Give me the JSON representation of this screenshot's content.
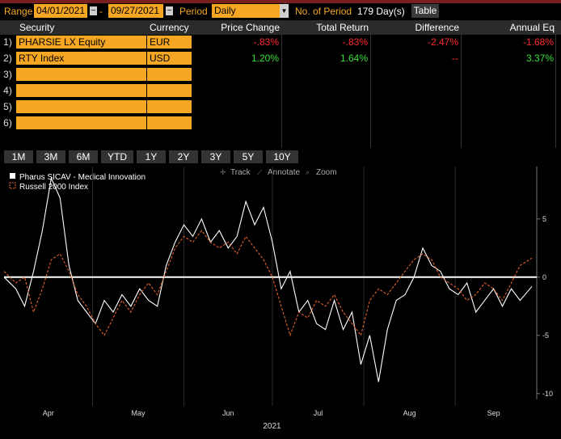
{
  "toolbar": {
    "range_label": "Range",
    "start_date": "04/01/2021",
    "end_date": "09/27/2021",
    "period_label": "Period",
    "period_value": "Daily",
    "num_period_label": "No. of Period",
    "num_period_value": "179 Day(s)",
    "table_button": "Table"
  },
  "table": {
    "headers": [
      "Security",
      "Currency",
      "Price Change",
      "Total Return",
      "Difference",
      "Annual Eq"
    ],
    "rows": [
      {
        "num": "1)",
        "security": "PHARSIE LX Equity",
        "currency": "EUR",
        "price_change": "-.83%",
        "total_return": "-.83%",
        "difference": "-2.47%",
        "annual_eq": "-1.68%"
      },
      {
        "num": "2)",
        "security": "RTY Index",
        "currency": "USD",
        "price_change": "1.20%",
        "total_return": "1.64%",
        "difference": "--",
        "annual_eq": "3.37%"
      },
      {
        "num": "3)",
        "security": "",
        "currency": ""
      },
      {
        "num": "4)",
        "security": "",
        "currency": ""
      },
      {
        "num": "5)",
        "security": "",
        "currency": ""
      },
      {
        "num": "6)",
        "security": "",
        "currency": ""
      }
    ]
  },
  "period_tabs": [
    "1M",
    "3M",
    "6M",
    "YTD",
    "1Y",
    "2Y",
    "3Y",
    "5Y",
    "10Y"
  ],
  "chart_tools": {
    "track": "Track",
    "annotate": "Annotate",
    "zoom": "Zoom"
  },
  "colors": {
    "accent": "#f5a623",
    "series1": "#ffffff",
    "series2": "#e0622a",
    "negative": "#ff2b2b",
    "positive": "#35e035"
  },
  "chart_data": {
    "type": "line",
    "legend_placement": "top-left",
    "series": [
      {
        "name": "Pharus SICAV - Medical Innovation",
        "style": "solid",
        "x": [
          "2021-04-01",
          "2021-04-05",
          "2021-04-08",
          "2021-04-11",
          "2021-04-14",
          "2021-04-17",
          "2021-04-20",
          "2021-04-23",
          "2021-04-26",
          "2021-04-29",
          "2021-05-02",
          "2021-05-05",
          "2021-05-08",
          "2021-05-11",
          "2021-05-14",
          "2021-05-17",
          "2021-05-20",
          "2021-05-23",
          "2021-05-26",
          "2021-05-29",
          "2021-06-01",
          "2021-06-04",
          "2021-06-07",
          "2021-06-10",
          "2021-06-13",
          "2021-06-16",
          "2021-06-19",
          "2021-06-22",
          "2021-06-25",
          "2021-06-28",
          "2021-07-01",
          "2021-07-04",
          "2021-07-07",
          "2021-07-10",
          "2021-07-13",
          "2021-07-16",
          "2021-07-19",
          "2021-07-22",
          "2021-07-25",
          "2021-07-28",
          "2021-07-31",
          "2021-08-03",
          "2021-08-06",
          "2021-08-09",
          "2021-08-12",
          "2021-08-15",
          "2021-08-18",
          "2021-08-21",
          "2021-08-24",
          "2021-08-27",
          "2021-08-30",
          "2021-09-02",
          "2021-09-05",
          "2021-09-08",
          "2021-09-11",
          "2021-09-14",
          "2021-09-17",
          "2021-09-20",
          "2021-09-23",
          "2021-09-27"
        ],
        "y": [
          0.0,
          -1.0,
          -2.5,
          0.5,
          4.0,
          8.5,
          6.8,
          1.0,
          -2.0,
          -3.0,
          -4.0,
          -2.0,
          -3.0,
          -1.5,
          -2.5,
          -1.0,
          -2.0,
          -2.5,
          1.0,
          3.0,
          4.5,
          3.5,
          5.0,
          3.0,
          4.0,
          2.5,
          3.5,
          6.5,
          4.5,
          6.0,
          3.0,
          -1.0,
          0.5,
          -3.0,
          -2.0,
          -4.0,
          -4.5,
          -2.0,
          -4.5,
          -3.0,
          -7.5,
          -5.0,
          -9.0,
          -4.5,
          -2.0,
          -1.5,
          0.0,
          2.5,
          1.0,
          0.5,
          -1.0,
          -1.5,
          -0.5,
          -3.0,
          -2.0,
          -1.0,
          -2.5,
          -1.0,
          -2.0,
          -0.8
        ]
      },
      {
        "name": "Russell 2000 Index",
        "style": "dashed",
        "x": [
          "2021-04-01",
          "2021-04-05",
          "2021-04-08",
          "2021-04-11",
          "2021-04-14",
          "2021-04-17",
          "2021-04-20",
          "2021-04-23",
          "2021-04-26",
          "2021-04-29",
          "2021-05-02",
          "2021-05-05",
          "2021-05-08",
          "2021-05-11",
          "2021-05-14",
          "2021-05-17",
          "2021-05-20",
          "2021-05-23",
          "2021-05-26",
          "2021-05-29",
          "2021-06-01",
          "2021-06-04",
          "2021-06-07",
          "2021-06-10",
          "2021-06-13",
          "2021-06-16",
          "2021-06-19",
          "2021-06-22",
          "2021-06-25",
          "2021-06-28",
          "2021-07-01",
          "2021-07-04",
          "2021-07-07",
          "2021-07-10",
          "2021-07-13",
          "2021-07-16",
          "2021-07-19",
          "2021-07-22",
          "2021-07-25",
          "2021-07-28",
          "2021-07-31",
          "2021-08-03",
          "2021-08-06",
          "2021-08-09",
          "2021-08-12",
          "2021-08-15",
          "2021-08-18",
          "2021-08-21",
          "2021-08-24",
          "2021-08-27",
          "2021-08-30",
          "2021-09-02",
          "2021-09-05",
          "2021-09-08",
          "2021-09-11",
          "2021-09-14",
          "2021-09-17",
          "2021-09-20",
          "2021-09-23",
          "2021-09-27"
        ],
        "y": [
          0.5,
          -0.5,
          0.0,
          -3.0,
          -1.0,
          1.5,
          2.0,
          0.5,
          -1.5,
          -2.5,
          -4.0,
          -5.0,
          -3.5,
          -2.0,
          -3.0,
          -1.5,
          -0.5,
          -1.5,
          0.5,
          2.5,
          3.5,
          3.0,
          4.0,
          3.0,
          2.5,
          3.0,
          2.0,
          3.5,
          2.5,
          1.5,
          0.0,
          -2.5,
          -5.0,
          -3.0,
          -3.5,
          -2.0,
          -2.5,
          -1.5,
          -3.0,
          -4.0,
          -5.0,
          -2.0,
          -1.0,
          -1.5,
          -0.5,
          0.5,
          1.5,
          2.0,
          1.5,
          0.0,
          -0.5,
          -1.0,
          -2.0,
          -1.5,
          -0.5,
          -1.0,
          -2.0,
          -0.5,
          1.0,
          1.64
        ]
      }
    ],
    "month_ticks": [
      "Apr",
      "May",
      "Jun",
      "Jul",
      "Aug",
      "Sep"
    ],
    "xlabel": "2021",
    "ylim": [
      -10.5,
      9.5
    ],
    "y_ticks": [
      5,
      0,
      -5,
      -10
    ],
    "zero_line": true
  }
}
